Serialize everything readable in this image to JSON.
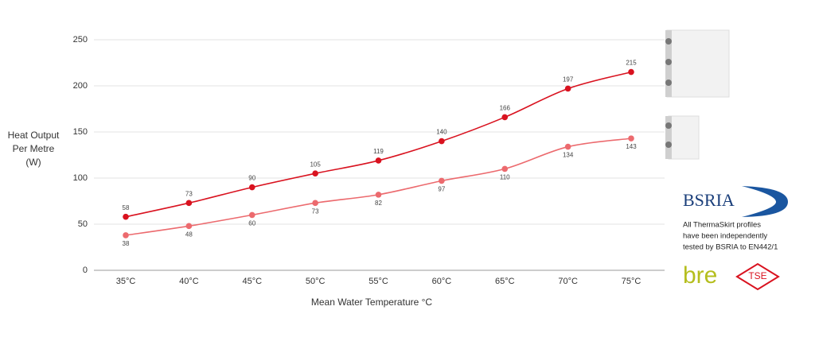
{
  "chart_data": {
    "type": "line",
    "ylabel_lines": [
      "Heat Output",
      "Per Metre",
      "(W)"
    ],
    "xlabel": "Mean Water Temperature °C",
    "categories": [
      "35°C",
      "40°C",
      "45°C",
      "50°C",
      "55°C",
      "60°C",
      "65°C",
      "70°C",
      "75°C"
    ],
    "series": [
      {
        "color": "#d9121f",
        "values": [
          58,
          73,
          90,
          105,
          119,
          140,
          166,
          197,
          215
        ]
      },
      {
        "color": "#ec6a6e",
        "values": [
          38,
          48,
          60,
          73,
          82,
          97,
          110,
          134,
          143
        ]
      }
    ],
    "ylim": [
      0,
      250
    ],
    "yticks": [
      0,
      50,
      100,
      150,
      200,
      250
    ],
    "grid": true
  },
  "panel": {
    "logo": "BSRIA",
    "caption_lines": [
      "All ThermaSkirt profiles",
      "have been independently",
      "tested by BSRIA to EN442/1"
    ],
    "bre": "bre",
    "tse": "TSE"
  }
}
